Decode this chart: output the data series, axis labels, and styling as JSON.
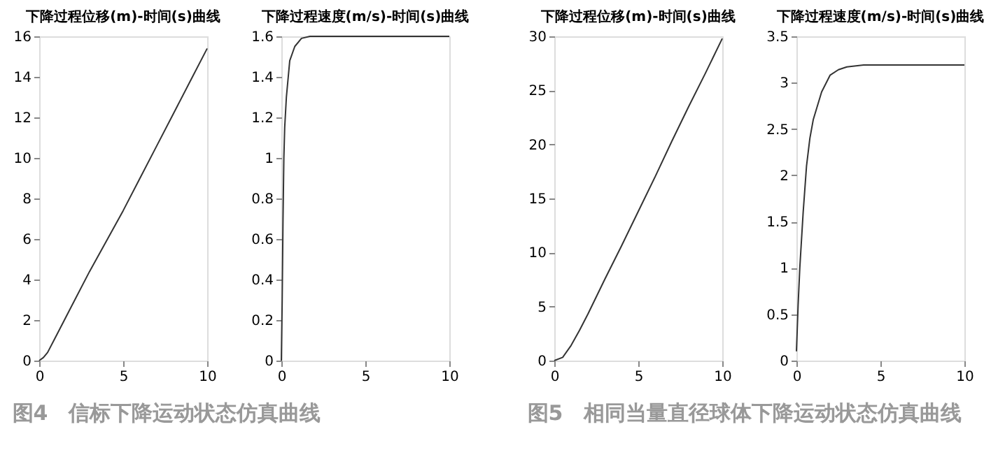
{
  "chart_data": [
    {
      "type": "line",
      "title": "下降过程位移(m)-时间(s)曲线",
      "annotations": [
        "图4　信标下降运动状态仿真曲线"
      ],
      "xlim": [
        0,
        10
      ],
      "xticks": [
        0,
        5,
        10
      ],
      "ylim": [
        0,
        16
      ],
      "yticks": [
        0,
        2,
        4,
        6,
        8,
        10,
        12,
        14,
        16
      ],
      "grid": false,
      "series": [
        {
          "color": "#333333",
          "x": [
            0,
            0.25,
            0.5,
            1,
            1.5,
            2,
            3,
            4,
            5,
            6,
            7,
            8,
            9,
            10
          ],
          "values": [
            0,
            0.15,
            0.4,
            1.2,
            2.0,
            2.8,
            4.4,
            5.9,
            7.4,
            9.0,
            10.6,
            12.2,
            13.8,
            15.4
          ]
        }
      ]
    },
    {
      "type": "line",
      "title": "下降过程速度(m/s)-时间(s)曲线",
      "xlim": [
        0,
        10
      ],
      "xticks": [
        0,
        5,
        10
      ],
      "ylim": [
        0,
        1.6
      ],
      "yticks": [
        0,
        0.2,
        0.4,
        0.6,
        0.8,
        1,
        1.2,
        1.4,
        1.6
      ],
      "grid": false,
      "series": [
        {
          "color": "#333333",
          "x": [
            0,
            0.05,
            0.1,
            0.15,
            0.2,
            0.3,
            0.5,
            0.8,
            1.2,
            1.7,
            10
          ],
          "values": [
            0,
            0.3,
            0.7,
            1.0,
            1.15,
            1.3,
            1.48,
            1.55,
            1.59,
            1.6,
            1.6
          ]
        }
      ]
    },
    {
      "type": "line",
      "title": "下降过程位移(m)-时间(s)曲线",
      "annotations": [
        "图5　相同当量直径球体下降运动状态仿真曲线"
      ],
      "xlim": [
        0,
        10
      ],
      "xticks": [
        0,
        5,
        10
      ],
      "ylim": [
        0,
        30
      ],
      "yticks": [
        0,
        5,
        10,
        15,
        20,
        25,
        30
      ],
      "grid": false,
      "series": [
        {
          "color": "#333333",
          "x": [
            0,
            0.5,
            1,
            1.5,
            2,
            3,
            4,
            5,
            6,
            7,
            8,
            9,
            10
          ],
          "values": [
            0,
            0.3,
            1.4,
            2.8,
            4.3,
            7.5,
            10.6,
            13.8,
            17.0,
            20.3,
            23.5,
            26.6,
            29.8
          ]
        }
      ]
    },
    {
      "type": "line",
      "title": "下降过程速度(m/s)-时间(s)曲线",
      "xlim": [
        0,
        10
      ],
      "xticks": [
        0,
        5,
        10
      ],
      "ylim": [
        0,
        3.5
      ],
      "yticks": [
        0,
        0.5,
        1,
        1.5,
        2,
        2.5,
        3,
        3.5
      ],
      "grid": false,
      "series": [
        {
          "color": "#333333",
          "x": [
            0,
            0.1,
            0.2,
            0.4,
            0.6,
            0.8,
            1,
            1.5,
            2,
            2.5,
            3,
            4,
            10
          ],
          "values": [
            0.1,
            0.6,
            1.0,
            1.6,
            2.1,
            2.4,
            2.6,
            2.9,
            3.08,
            3.14,
            3.17,
            3.19,
            3.19
          ]
        }
      ]
    }
  ]
}
